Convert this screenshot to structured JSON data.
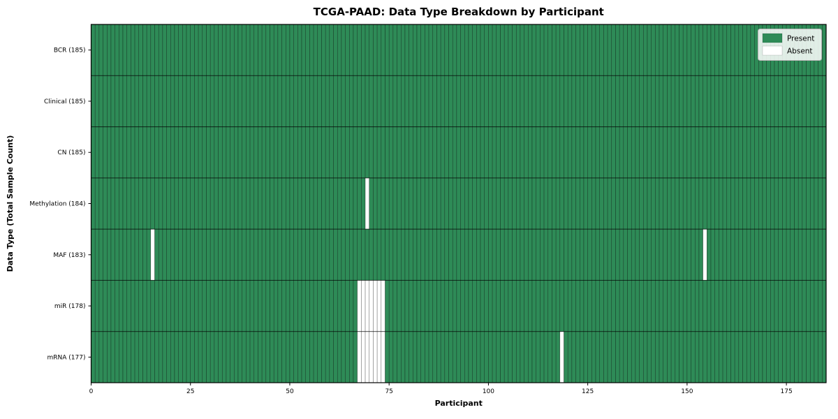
{
  "chart_data": {
    "type": "heatmap",
    "title": "TCGA-PAAD: Data Type Breakdown by Participant",
    "xlabel": "Participant",
    "ylabel": "Data Type (Total Sample Count)",
    "xlim": [
      0,
      185
    ],
    "n_participants": 185,
    "x_ticks": [
      0,
      25,
      50,
      75,
      100,
      125,
      150,
      175
    ],
    "rows": [
      {
        "label": "BCR (185)",
        "data_type": "BCR",
        "present_count": 185,
        "absent_participants": []
      },
      {
        "label": "Clinical (185)",
        "data_type": "Clinical",
        "present_count": 185,
        "absent_participants": []
      },
      {
        "label": "CN (185)",
        "data_type": "CN",
        "present_count": 185,
        "absent_participants": []
      },
      {
        "label": "Methylation (184)",
        "data_type": "Methylation",
        "present_count": 184,
        "absent_participants": [
          69
        ]
      },
      {
        "label": "MAF (183)",
        "data_type": "MAF",
        "present_count": 183,
        "absent_participants": [
          15,
          154
        ]
      },
      {
        "label": "miR (178)",
        "data_type": "miR",
        "present_count": 178,
        "absent_participants": [
          67,
          68,
          69,
          70,
          71,
          72,
          73
        ]
      },
      {
        "label": "mRNA (177)",
        "data_type": "mRNA",
        "present_count": 177,
        "absent_participants": [
          67,
          68,
          69,
          70,
          71,
          72,
          73,
          118
        ]
      }
    ],
    "legend": {
      "position": "upper right",
      "entries": [
        "Present",
        "Absent"
      ]
    },
    "colors": {
      "present": "#2e8b57",
      "absent": "#ffffff",
      "cell_edge": "rgba(0,0,0,0.55)",
      "row_separator": "rgba(0,0,0,0.55)"
    },
    "grid": false
  }
}
